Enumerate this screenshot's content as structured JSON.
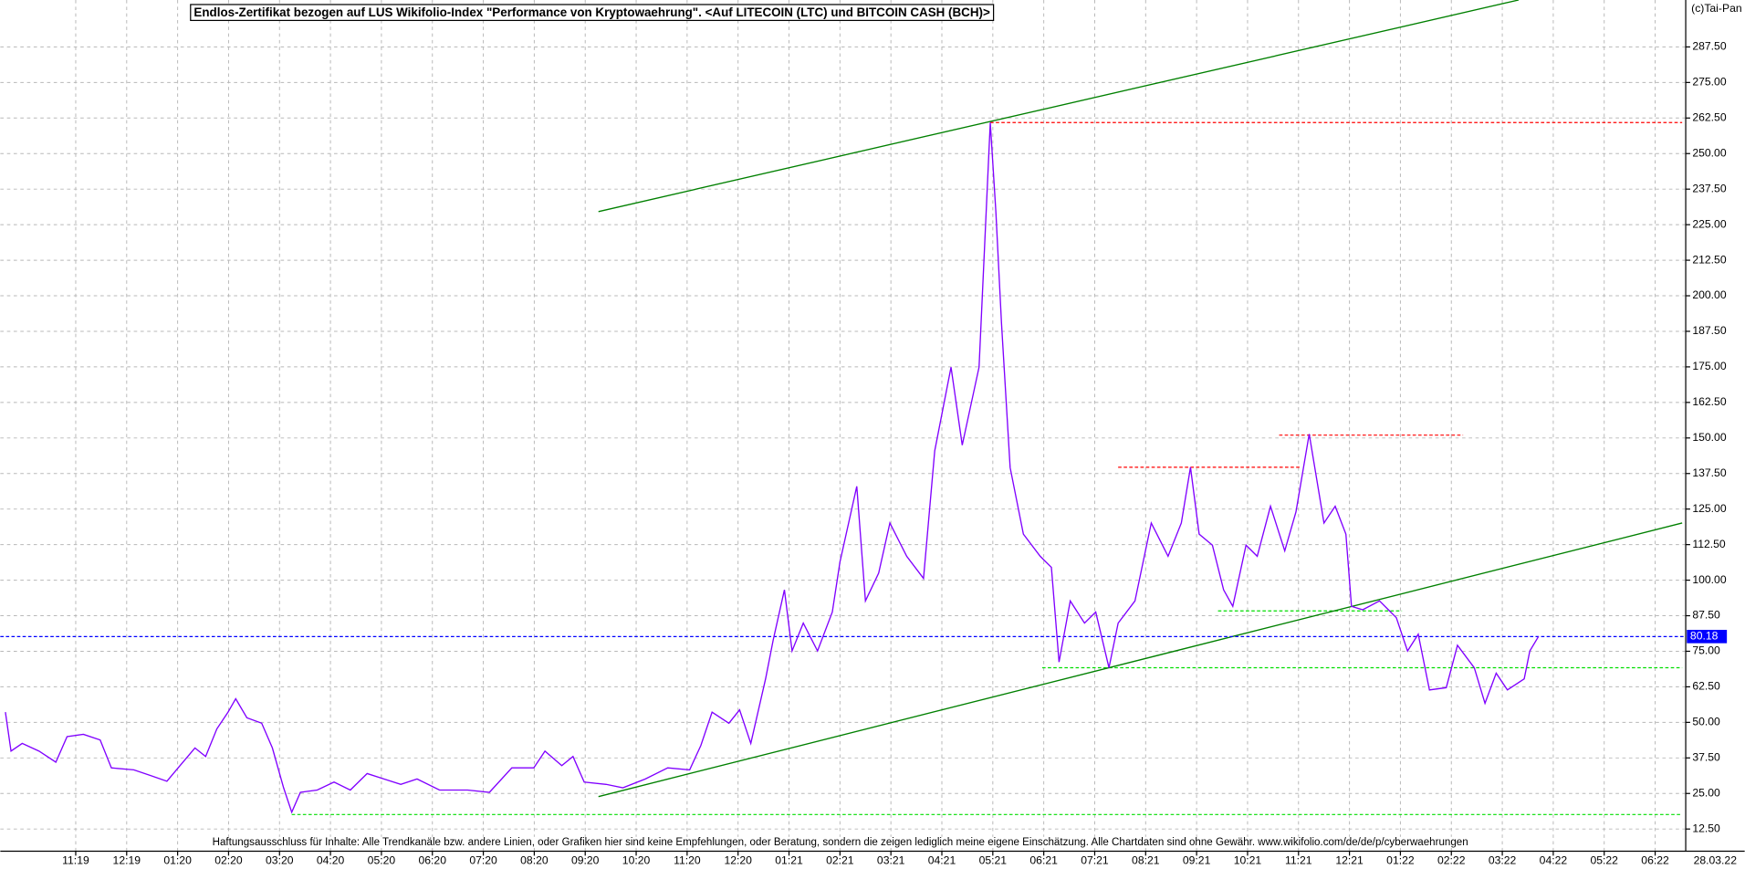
{
  "chart_data": {
    "type": "line",
    "title": "Endlos-Zertifikat bezogen auf LUS Wikifolio-Index \"Performance von Kryptowaehrung\". <Auf LITECOIN (LTC) und BITCOIN CASH (BCH)>",
    "source": "(c)Tai-Pan",
    "footer": "Haftungsausschluss für Inhalte: Alle Trendkanäle bzw. andere Linien, oder Grafiken hier sind keine Empfehlungen, oder Beratung, sondern die zeigen lediglich meine eigene Einschätzung. Alle Chartdaten sind ohne Gewähr.  www.wikifolio.com/de/de/p/cyberwaehrungen",
    "date_label": "28.03.22",
    "color": "#8000ff",
    "x": [
      -1.38,
      -1.27,
      -1.05,
      -0.72,
      -0.39,
      -0.17,
      0.15,
      0.48,
      0.7,
      1.14,
      1.47,
      1.79,
      2.01,
      2.34,
      2.55,
      2.77,
      2.99,
      3.14,
      3.36,
      3.65,
      3.86,
      4.08,
      4.24,
      4.41,
      4.74,
      5.07,
      5.39,
      5.72,
      6.05,
      6.38,
      6.7,
      7.14,
      7.69,
      8.12,
      8.56,
      8.99,
      9.21,
      9.54,
      9.76,
      9.98,
      10.41,
      10.74,
      11.18,
      11.62,
      12.05,
      12.27,
      12.49,
      12.82,
      13.03,
      13.25,
      13.54,
      13.69,
      13.91,
      14.06,
      14.28,
      14.56,
      14.85,
      15.0,
      15.33,
      15.5,
      15.76,
      15.98,
      16.31,
      16.64,
      16.86,
      17.18,
      17.4,
      17.73,
      17.95,
      18.06,
      18.17,
      18.34,
      18.6,
      18.93,
      19.15,
      19.3,
      19.52,
      19.8,
      20.02,
      20.28,
      20.46,
      20.79,
      21.11,
      21.44,
      21.7,
      21.88,
      22.05,
      22.31,
      22.53,
      22.71,
      22.97,
      23.19,
      23.45,
      23.73,
      23.95,
      24.21,
      24.5,
      24.72,
      24.93,
      25.04,
      25.26,
      25.59,
      25.92,
      26.14,
      26.35,
      26.57,
      26.9,
      27.12,
      27.45,
      27.66,
      27.88,
      28.1,
      28.43,
      28.54,
      28.71
    ],
    "values": [
      53.6,
      39.9,
      42.6,
      39.9,
      36,
      45,
      45.8,
      43.8,
      34,
      33.3,
      31.3,
      29.3,
      34,
      41,
      38,
      47.7,
      53.6,
      58.3,
      51.6,
      49.7,
      41,
      27,
      18.4,
      25.4,
      26.2,
      29,
      26.2,
      32,
      30.1,
      28.2,
      30.1,
      26.2,
      26.2,
      25.4,
      34,
      34,
      39.9,
      34.8,
      38,
      29,
      28.2,
      27,
      30.1,
      34,
      33.3,
      41.9,
      53.6,
      49.7,
      54.4,
      42.6,
      65.3,
      79,
      96.6,
      75.1,
      84.9,
      75.1,
      88.8,
      106.4,
      133,
      92.7,
      102.5,
      120.1,
      108.4,
      100.6,
      145.5,
      174.9,
      147.5,
      174.9,
      260.9,
      229.6,
      190.5,
      139.6,
      116.2,
      108.4,
      104.5,
      71.2,
      92.7,
      84.9,
      88.8,
      69.2,
      84.9,
      92.7,
      120.1,
      108.4,
      120.1,
      139.7,
      116.2,
      112.3,
      96.6,
      90.8,
      112.3,
      108.4,
      126,
      110.3,
      124,
      151.4,
      120.1,
      126,
      116.2,
      90.8,
      89.6,
      92.7,
      86.8,
      75.1,
      81,
      61.4,
      62.2,
      77.1,
      69.2,
      56.7,
      67.3,
      61.4,
      65.3,
      75.1,
      80.18
    ],
    "last_value": 80.18,
    "last_value_color": "#0000ff",
    "trend_lines": [
      {
        "color": "#008000",
        "x": [
          10.26,
          28.32
        ],
        "y": [
          229.6,
          304
        ]
      },
      {
        "color": "#008000",
        "x": [
          10.26,
          31.53
        ],
        "y": [
          23.9,
          120.1
        ]
      }
    ],
    "levels": [
      {
        "color": "#ff0000",
        "value": 260.9,
        "x": [
          17.95,
          31.53
        ]
      },
      {
        "color": "#ff0000",
        "value": 139.7,
        "x": [
          20.46,
          24.02
        ]
      },
      {
        "color": "#ff0000",
        "value": 151,
        "x": [
          23.62,
          27.23
        ]
      },
      {
        "color": "#00dd00",
        "value": 89.2,
        "x": [
          22.42,
          26.03
        ]
      },
      {
        "color": "#00dd00",
        "value": 69.2,
        "x": [
          18.97,
          31.53
        ]
      },
      {
        "color": "#00dd00",
        "value": 17.6,
        "x": [
          4.24,
          31.53
        ]
      }
    ],
    "xlim": [
      -1.48,
      31.6
    ],
    "ylim": [
      4.7,
      304
    ],
    "xticks": [
      {
        "value": 0,
        "label": "11:19"
      },
      {
        "value": 1,
        "label": "12:19"
      },
      {
        "value": 2,
        "label": "01:20"
      },
      {
        "value": 3,
        "label": "02:20"
      },
      {
        "value": 4,
        "label": "03:20"
      },
      {
        "value": 5,
        "label": "04:20"
      },
      {
        "value": 6,
        "label": "05:20"
      },
      {
        "value": 7,
        "label": "06:20"
      },
      {
        "value": 8,
        "label": "07:20"
      },
      {
        "value": 9,
        "label": "08:20"
      },
      {
        "value": 10,
        "label": "09:20"
      },
      {
        "value": 11,
        "label": "10:20"
      },
      {
        "value": 12,
        "label": "11:20"
      },
      {
        "value": 13,
        "label": "12:20"
      },
      {
        "value": 14,
        "label": "01:21"
      },
      {
        "value": 15,
        "label": "02:21"
      },
      {
        "value": 16,
        "label": "03:21"
      },
      {
        "value": 17,
        "label": "04:21"
      },
      {
        "value": 18,
        "label": "05:21"
      },
      {
        "value": 19,
        "label": "06:21"
      },
      {
        "value": 20,
        "label": "07:21"
      },
      {
        "value": 21,
        "label": "08:21"
      },
      {
        "value": 22,
        "label": "09:21"
      },
      {
        "value": 23,
        "label": "10:21"
      },
      {
        "value": 24,
        "label": "11:21"
      },
      {
        "value": 25,
        "label": "12:21"
      },
      {
        "value": 26,
        "label": "01:22"
      },
      {
        "value": 27,
        "label": "02:22"
      },
      {
        "value": 28,
        "label": "03:22"
      },
      {
        "value": 29,
        "label": "04:22"
      },
      {
        "value": 30,
        "label": "05:22"
      },
      {
        "value": 31,
        "label": "06:22"
      }
    ],
    "yticks": [
      {
        "value": 12.5,
        "label": "12.50"
      },
      {
        "value": 25,
        "label": "25.00"
      },
      {
        "value": 37.5,
        "label": "37.50"
      },
      {
        "value": 50,
        "label": "50.00"
      },
      {
        "value": 62.5,
        "label": "62.50"
      },
      {
        "value": 75,
        "label": "75.00"
      },
      {
        "value": 87.5,
        "label": "87.50"
      },
      {
        "value": 100,
        "label": "100.00"
      },
      {
        "value": 112.5,
        "label": "112.50"
      },
      {
        "value": 125,
        "label": "125.00"
      },
      {
        "value": 137.5,
        "label": "137.50"
      },
      {
        "value": 150,
        "label": "150.00"
      },
      {
        "value": 162.5,
        "label": "162.50"
      },
      {
        "value": 175,
        "label": "175.00"
      },
      {
        "value": 187.5,
        "label": "187.50"
      },
      {
        "value": 200,
        "label": "200.00"
      },
      {
        "value": 212.5,
        "label": "212.50"
      },
      {
        "value": 225,
        "label": "225.00"
      },
      {
        "value": 237.5,
        "label": "237.50"
      },
      {
        "value": 250,
        "label": "250.00"
      },
      {
        "value": 262.5,
        "label": "262.50"
      },
      {
        "value": 275,
        "label": "275.00"
      },
      {
        "value": 287.5,
        "label": "287.50"
      }
    ],
    "grid": true
  }
}
